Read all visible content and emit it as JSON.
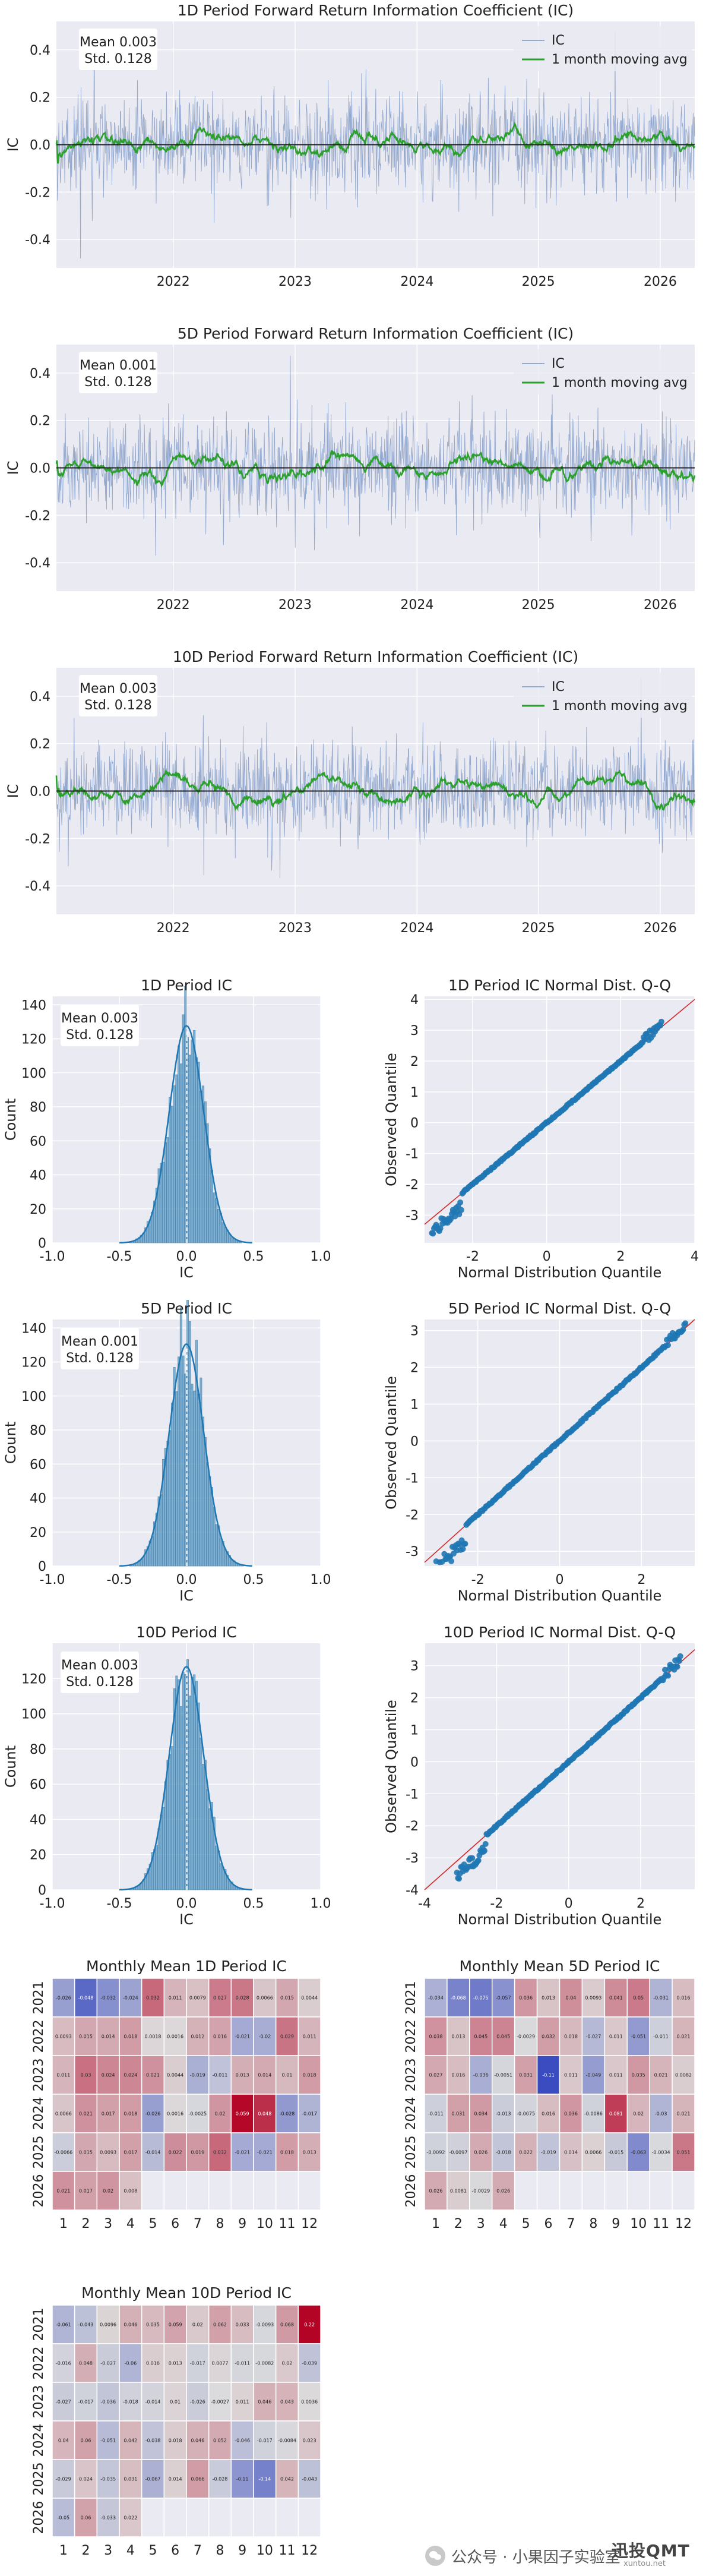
{
  "chart_data": [
    {
      "type": "line",
      "title": "1D Period Forward Return Information Coefficient (IC)",
      "ylabel": "IC",
      "xlabel": "",
      "ylim": [
        -0.52,
        0.52
      ],
      "yticks": [
        "-0.4",
        "-0.2",
        "0.0",
        "0.2",
        "0.4"
      ],
      "xticks": [
        "2022",
        "2023",
        "2024",
        "2025",
        "2026"
      ],
      "stats": [
        "Mean 0.003",
        "Std. 0.128"
      ],
      "series": [
        {
          "name": "IC",
          "color": "#4c72b0"
        },
        {
          "name": "1 month moving avg",
          "color": "#2ca02c"
        }
      ],
      "legend": "top-right",
      "noise": 0.128,
      "smooth_amp": 0.035
    },
    {
      "type": "line",
      "title": "5D Period Forward Return Information Coefficient (IC)",
      "ylabel": "IC",
      "xlabel": "",
      "ylim": [
        -0.52,
        0.52
      ],
      "yticks": [
        "-0.4",
        "-0.2",
        "0.0",
        "0.2",
        "0.4"
      ],
      "xticks": [
        "2022",
        "2023",
        "2024",
        "2025",
        "2026"
      ],
      "stats": [
        "Mean 0.001",
        "Std. 0.128"
      ],
      "series": [
        {
          "name": "IC",
          "color": "#4c72b0"
        },
        {
          "name": "1 month moving avg",
          "color": "#2ca02c"
        }
      ],
      "legend": "top-right",
      "noise": 0.128,
      "smooth_amp": 0.07
    },
    {
      "type": "line",
      "title": "10D Period Forward Return Information Coefficient (IC)",
      "ylabel": "IC",
      "xlabel": "",
      "ylim": [
        -0.52,
        0.52
      ],
      "yticks": [
        "-0.4",
        "-0.2",
        "0.0",
        "0.2",
        "0.4"
      ],
      "xticks": [
        "2022",
        "2023",
        "2024",
        "2025",
        "2026"
      ],
      "stats": [
        "Mean 0.003",
        "Std. 0.128"
      ],
      "series": [
        {
          "name": "IC",
          "color": "#4c72b0"
        },
        {
          "name": "1 month moving avg",
          "color": "#2ca02c"
        }
      ],
      "legend": "top-right",
      "noise": 0.128,
      "smooth_amp": 0.09
    },
    {
      "type": "bar",
      "title": "1D Period IC",
      "xlabel": "IC",
      "ylabel": "Count",
      "xlim": [
        -1.0,
        1.0
      ],
      "xticks": [
        "-1.0",
        "-0.5",
        "0.0",
        "0.5",
        "1.0"
      ],
      "ylim": [
        0,
        145
      ],
      "yticks": [
        "0",
        "20",
        "40",
        "60",
        "80",
        "100",
        "120",
        "140"
      ],
      "stats": [
        "Mean 0.003",
        "Std. 0.128"
      ],
      "peak": 133
    },
    {
      "type": "scatter",
      "title": "1D Period IC Normal Dist. Q-Q",
      "xlabel": "Normal Distribution Quantile",
      "ylabel": "Observed Quantile",
      "xlim": [
        -3.3,
        4
      ],
      "ylim": [
        -3.9,
        4.1
      ],
      "xticks": [
        "-2",
        "0",
        "2",
        "4"
      ],
      "yticks": [
        "-3",
        "-2",
        "-1",
        "0",
        "1",
        "2",
        "3",
        "4"
      ]
    },
    {
      "type": "bar",
      "title": "5D Period IC",
      "xlabel": "IC",
      "ylabel": "Count",
      "xlim": [
        -1.0,
        1.0
      ],
      "xticks": [
        "-1.0",
        "-0.5",
        "0.0",
        "0.5",
        "1.0"
      ],
      "ylim": [
        0,
        145
      ],
      "yticks": [
        "0",
        "20",
        "40",
        "60",
        "80",
        "100",
        "120",
        "140"
      ],
      "stats": [
        "Mean 0.001",
        "Std. 0.128"
      ],
      "peak": 136
    },
    {
      "type": "scatter",
      "title": "5D Period IC Normal Dist. Q-Q",
      "xlabel": "Normal Distribution Quantile",
      "ylabel": "Observed Quantile",
      "xlim": [
        -3.3,
        3.3
      ],
      "ylim": [
        -3.4,
        3.3
      ],
      "xticks": [
        "-2",
        "0",
        "2"
      ],
      "yticks": [
        "-3",
        "-2",
        "-1",
        "0",
        "1",
        "2",
        "3"
      ]
    },
    {
      "type": "bar",
      "title": "10D Period IC",
      "xlabel": "IC",
      "ylabel": "Count",
      "xlim": [
        -1.0,
        1.0
      ],
      "xticks": [
        "-1.0",
        "-0.5",
        "0.0",
        "0.5",
        "1.0"
      ],
      "ylim": [
        0,
        140
      ],
      "yticks": [
        "0",
        "20",
        "40",
        "60",
        "80",
        "100",
        "120"
      ],
      "stats": [
        "Mean 0.003",
        "Std. 0.128"
      ],
      "peak": 132
    },
    {
      "type": "scatter",
      "title": "10D Period IC Normal Dist. Q-Q",
      "xlabel": "Normal Distribution Quantile",
      "ylabel": "Observed Quantile",
      "xlim": [
        -4,
        3.5
      ],
      "ylim": [
        -4,
        3.7
      ],
      "xticks": [
        "-4",
        "-2",
        "0",
        "2"
      ],
      "yticks": [
        "-4",
        "-3",
        "-2",
        "-1",
        "0",
        "1",
        "2",
        "3"
      ]
    },
    {
      "type": "heatmap",
      "title": "Monthly Mean 1D Period IC",
      "rows": [
        "2021",
        "2022",
        "2023",
        "2024",
        "2025",
        "2026"
      ],
      "cols": [
        "1",
        "2",
        "3",
        "4",
        "5",
        "6",
        "7",
        "8",
        "9",
        "10",
        "11",
        "12"
      ],
      "values": [
        [
          -0.026,
          -0.048,
          -0.032,
          -0.024,
          0.032,
          0.011,
          0.0079,
          0.027,
          0.028,
          0.0066,
          0.015,
          0.0044
        ],
        [
          0.0093,
          0.015,
          0.014,
          0.018,
          0.0018,
          0.0016,
          0.012,
          0.016,
          -0.021,
          -0.02,
          0.029,
          0.011
        ],
        [
          0.011,
          0.03,
          0.024,
          0.024,
          0.021,
          0.0044,
          -0.019,
          -0.011,
          0.013,
          0.014,
          0.01,
          0.018
        ],
        [
          0.0066,
          0.021,
          0.017,
          0.018,
          -0.026,
          0.0016,
          -0.0025,
          0.02,
          0.059,
          0.048,
          -0.028,
          -0.017
        ],
        [
          -0.0066,
          0.015,
          0.0093,
          0.017,
          -0.014,
          0.022,
          0.019,
          0.032,
          -0.021,
          -0.021,
          0.018,
          0.013
        ],
        [
          0.021,
          0.017,
          0.02,
          0.008,
          null,
          null,
          null,
          null,
          null,
          null,
          null,
          null
        ]
      ]
    },
    {
      "type": "heatmap",
      "title": "Monthly Mean 5D Period IC",
      "rows": [
        "2021",
        "2022",
        "2023",
        "2024",
        "2025",
        "2026"
      ],
      "cols": [
        "1",
        "2",
        "3",
        "4",
        "5",
        "6",
        "7",
        "8",
        "9",
        "10",
        "11",
        "12"
      ],
      "values": [
        [
          -0.034,
          -0.068,
          -0.075,
          -0.057,
          0.036,
          0.013,
          0.04,
          0.0093,
          0.041,
          0.05,
          -0.031,
          0.016
        ],
        [
          0.038,
          0.013,
          0.045,
          0.045,
          -0.0029,
          0.032,
          0.018,
          -0.027,
          0.011,
          -0.051,
          -0.011,
          0.021
        ],
        [
          0.027,
          0.016,
          -0.036,
          -0.0051,
          0.031,
          -0.11,
          0.011,
          -0.049,
          0.011,
          0.035,
          0.021,
          0.0082
        ],
        [
          -0.011,
          0.031,
          0.034,
          -0.013,
          -0.0075,
          0.016,
          0.036,
          -0.0086,
          0.081,
          0.02,
          -0.03,
          0.021
        ],
        [
          -0.0092,
          -0.0097,
          0.026,
          -0.018,
          0.022,
          -0.019,
          0.014,
          0.0066,
          -0.015,
          -0.063,
          -0.0034,
          0.051
        ],
        [
          0.026,
          0.0081,
          -0.0029,
          0.026,
          null,
          null,
          null,
          null,
          null,
          null,
          null,
          null
        ]
      ]
    },
    {
      "type": "heatmap",
      "title": "Monthly Mean 10D Period IC",
      "rows": [
        "2021",
        "2022",
        "2023",
        "2024",
        "2025",
        "2026"
      ],
      "cols": [
        "1",
        "2",
        "3",
        "4",
        "5",
        "6",
        "7",
        "8",
        "9",
        "10",
        "11",
        "12"
      ],
      "values": [
        [
          -0.061,
          -0.043,
          0.0096,
          0.046,
          0.035,
          0.059,
          0.02,
          0.062,
          0.033,
          -0.0093,
          0.068,
          0.22
        ],
        [
          -0.016,
          0.048,
          -0.027,
          -0.06,
          0.016,
          0.013,
          -0.017,
          0.0077,
          -0.011,
          -0.0082,
          0.02,
          -0.039
        ],
        [
          -0.027,
          -0.017,
          -0.036,
          -0.018,
          -0.014,
          0.01,
          -0.026,
          -0.0027,
          0.011,
          0.046,
          0.043,
          0.0036
        ],
        [
          0.04,
          0.06,
          -0.051,
          0.042,
          -0.038,
          0.018,
          0.046,
          0.052,
          -0.046,
          -0.017,
          -0.0084,
          0.023
        ],
        [
          -0.029,
          0.024,
          -0.035,
          0.031,
          -0.067,
          0.014,
          0.066,
          -0.028,
          -0.11,
          -0.14,
          0.042,
          -0.043
        ],
        [
          -0.05,
          0.06,
          -0.033,
          0.022,
          null,
          null,
          null,
          null,
          null,
          null,
          null,
          null
        ]
      ]
    }
  ],
  "watermark": {
    "text": "公众号 · 小果因子实验室",
    "logo": "迅投QMT",
    "site": "xuntou.net"
  }
}
